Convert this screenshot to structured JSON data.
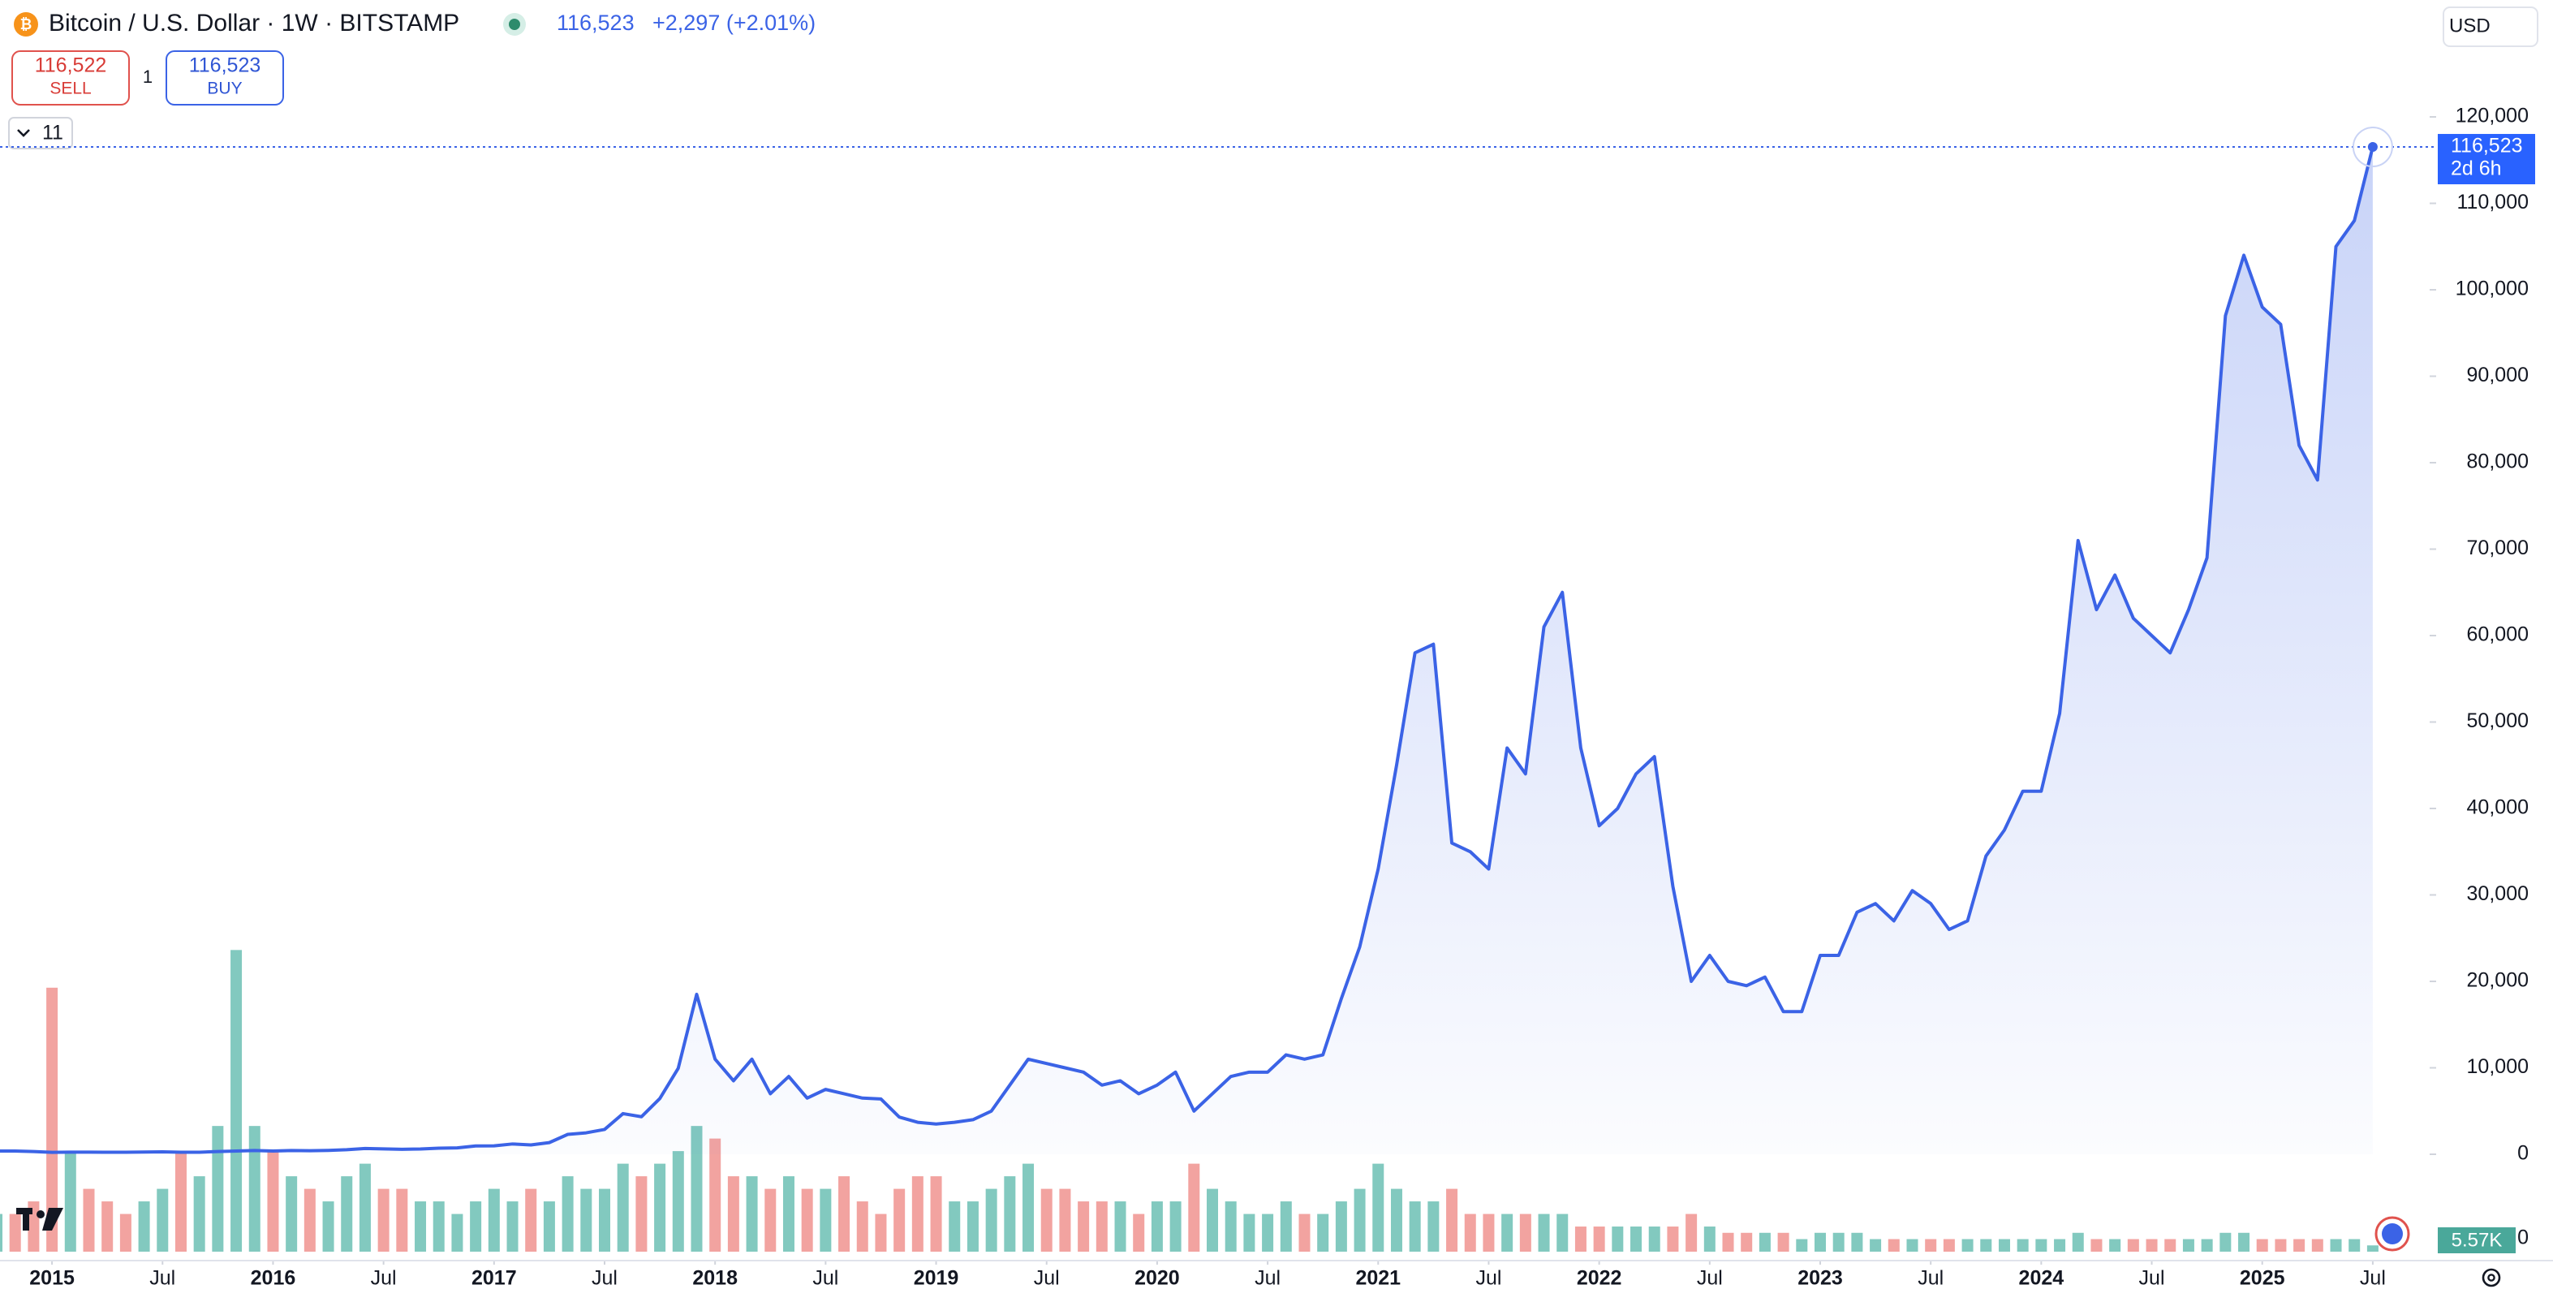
{
  "header": {
    "title": "Bitcoin / U.S. Dollar · 1W · BITSTAMP",
    "price": "116,523",
    "change": "+2,297 (+2.01%)",
    "sell_price": "116,522",
    "sell": "SELL",
    "quantity": "1",
    "buy_price": "116,523",
    "buy": "BUY",
    "indicators": "11",
    "currency": "USD"
  },
  "chart_data": {
    "type": "line",
    "x": [
      "2014-10",
      "2014-11",
      "2014-12",
      "2015-01",
      "2015-02",
      "2015-03",
      "2015-04",
      "2015-05",
      "2015-06",
      "2015-07",
      "2015-08",
      "2015-09",
      "2015-10",
      "2015-11",
      "2015-12",
      "2016-01",
      "2016-02",
      "2016-03",
      "2016-04",
      "2016-05",
      "2016-06",
      "2016-07",
      "2016-08",
      "2016-09",
      "2016-10",
      "2016-11",
      "2016-12",
      "2017-01",
      "2017-02",
      "2017-03",
      "2017-04",
      "2017-05",
      "2017-06",
      "2017-07",
      "2017-08",
      "2017-09",
      "2017-10",
      "2017-11",
      "2017-12",
      "2018-01",
      "2018-02",
      "2018-03",
      "2018-04",
      "2018-05",
      "2018-06",
      "2018-07",
      "2018-08",
      "2018-09",
      "2018-10",
      "2018-11",
      "2018-12",
      "2019-01",
      "2019-02",
      "2019-03",
      "2019-04",
      "2019-05",
      "2019-06",
      "2019-07",
      "2019-08",
      "2019-09",
      "2019-10",
      "2019-11",
      "2019-12",
      "2020-01",
      "2020-02",
      "2020-03",
      "2020-04",
      "2020-05",
      "2020-06",
      "2020-07",
      "2020-08",
      "2020-09",
      "2020-10",
      "2020-11",
      "2020-12",
      "2021-01",
      "2021-02",
      "2021-03",
      "2021-04",
      "2021-05",
      "2021-06",
      "2021-07",
      "2021-08",
      "2021-09",
      "2021-10",
      "2021-11",
      "2021-12",
      "2022-01",
      "2022-02",
      "2022-03",
      "2022-04",
      "2022-05",
      "2022-06",
      "2022-07",
      "2022-08",
      "2022-09",
      "2022-10",
      "2022-11",
      "2022-12",
      "2023-01",
      "2023-02",
      "2023-03",
      "2023-04",
      "2023-05",
      "2023-06",
      "2023-07",
      "2023-08",
      "2023-09",
      "2023-10",
      "2023-11",
      "2023-12",
      "2024-01",
      "2024-02",
      "2024-03",
      "2024-04",
      "2024-05",
      "2024-06",
      "2024-07",
      "2024-08",
      "2024-09",
      "2024-10",
      "2024-11",
      "2024-12",
      "2025-01",
      "2025-02",
      "2025-03",
      "2025-04",
      "2025-05",
      "2025-06",
      "2025-07"
    ],
    "series": [
      {
        "color": "#3b63e6",
        "values": [
          380,
          375,
          320,
          220,
          250,
          245,
          235,
          230,
          260,
          285,
          230,
          235,
          315,
          375,
          430,
          370,
          435,
          415,
          450,
          530,
          670,
          625,
          575,
          610,
          700,
          740,
          960,
          970,
          1190,
          1080,
          1350,
          2300,
          2480,
          2870,
          4700,
          4340,
          6450,
          9950,
          18500,
          11000,
          8500,
          11000,
          7000,
          9000,
          6500,
          7500,
          7000,
          6500,
          6400,
          4300,
          3700,
          3500,
          3700,
          4000,
          5000,
          8000,
          11000,
          10500,
          10000,
          9500,
          8000,
          8500,
          7000,
          8000,
          9500,
          5000,
          7000,
          9000,
          9500,
          9500,
          11500,
          11000,
          11500,
          18000,
          24000,
          33000,
          45000,
          58000,
          59000,
          36000,
          35000,
          33000,
          47000,
          44000,
          61000,
          65000,
          47000,
          38000,
          40000,
          44000,
          46000,
          31000,
          20000,
          23000,
          20000,
          19500,
          20500,
          16500,
          16500,
          23000,
          23000,
          28000,
          29000,
          27000,
          30500,
          29000,
          26000,
          27000,
          34500,
          37500,
          42000,
          42000,
          51000,
          71000,
          63000,
          67000,
          62000,
          60000,
          58000,
          63000,
          69000,
          97000,
          104000,
          98000,
          96000,
          82000,
          78000,
          105000,
          108000,
          116523
        ]
      }
    ],
    "volume": {
      "up_color": "#6cbfb4",
      "down_color": "#f0938f",
      "ylim": [
        0,
        35
      ],
      "values": [
        3,
        3,
        4,
        21,
        8,
        5,
        4,
        3,
        4,
        5,
        8,
        6,
        10,
        24,
        10,
        8,
        6,
        5,
        4,
        6,
        7,
        5,
        5,
        4,
        4,
        3,
        4,
        5,
        4,
        5,
        4,
        6,
        5,
        5,
        7,
        6,
        7,
        8,
        10,
        9,
        6,
        6,
        5,
        6,
        5,
        5,
        6,
        4,
        3,
        5,
        6,
        6,
        4,
        4,
        5,
        6,
        7,
        5,
        5,
        4,
        4,
        4,
        3,
        4,
        4,
        7,
        5,
        4,
        3,
        3,
        4,
        3,
        3,
        4,
        5,
        7,
        5,
        4,
        4,
        5,
        3,
        3,
        3,
        3,
        3,
        3,
        2,
        2,
        2,
        2,
        2,
        2,
        3,
        2,
        1.5,
        1.5,
        1.5,
        1.5,
        1,
        1.5,
        1.5,
        1.5,
        1,
        1,
        1,
        1,
        1,
        1,
        1,
        1,
        1,
        1,
        1,
        1.5,
        1,
        1,
        1,
        1,
        1,
        1,
        1,
        1.5,
        1.5,
        1,
        1,
        1,
        1,
        1,
        1,
        0.5
      ],
      "last_label": "5.57K",
      "zero_label": "0"
    },
    "last_price_label": "116,523",
    "countdown": "2d 6h",
    "xlim": [
      "2014-10",
      "2025-10"
    ],
    "xticks": [
      {
        "value": "2015-01",
        "label": "2015"
      },
      {
        "value": "2015-07",
        "label": "Jul"
      },
      {
        "value": "2016-01",
        "label": "2016"
      },
      {
        "value": "2016-07",
        "label": "Jul"
      },
      {
        "value": "2017-01",
        "label": "2017"
      },
      {
        "value": "2017-07",
        "label": "Jul"
      },
      {
        "value": "2018-01",
        "label": "2018"
      },
      {
        "value": "2018-07",
        "label": "Jul"
      },
      {
        "value": "2019-01",
        "label": "2019"
      },
      {
        "value": "2019-07",
        "label": "Jul"
      },
      {
        "value": "2020-01",
        "label": "2020"
      },
      {
        "value": "2020-07",
        "label": "Jul"
      },
      {
        "value": "2021-01",
        "label": "2021"
      },
      {
        "value": "2021-07",
        "label": "Jul"
      },
      {
        "value": "2022-01",
        "label": "2022"
      },
      {
        "value": "2022-07",
        "label": "Jul"
      },
      {
        "value": "2023-01",
        "label": "2023"
      },
      {
        "value": "2023-07",
        "label": "Jul"
      },
      {
        "value": "2024-01",
        "label": "2024"
      },
      {
        "value": "2024-07",
        "label": "Jul"
      },
      {
        "value": "2025-01",
        "label": "2025"
      },
      {
        "value": "2025-07",
        "label": "Jul"
      }
    ],
    "ylim": [
      0,
      120000
    ],
    "yticks": [
      0,
      {
        "value": 10000,
        "label": "10,000"
      },
      {
        "value": 20000,
        "label": "20,000"
      },
      {
        "value": 30000,
        "label": "30,000"
      },
      {
        "value": 40000,
        "label": "40,000"
      },
      {
        "value": 50000,
        "label": "50,000"
      },
      {
        "value": 60000,
        "label": "60,000"
      },
      {
        "value": 70000,
        "label": "70,000"
      },
      {
        "value": 80000,
        "label": "80,000"
      },
      {
        "value": 90000,
        "label": "90,000"
      },
      {
        "value": 100000,
        "label": "100,000"
      },
      {
        "value": 110000,
        "label": "110,000"
      },
      {
        "value": 120000,
        "label": "120,000"
      }
    ],
    "grid": false
  }
}
